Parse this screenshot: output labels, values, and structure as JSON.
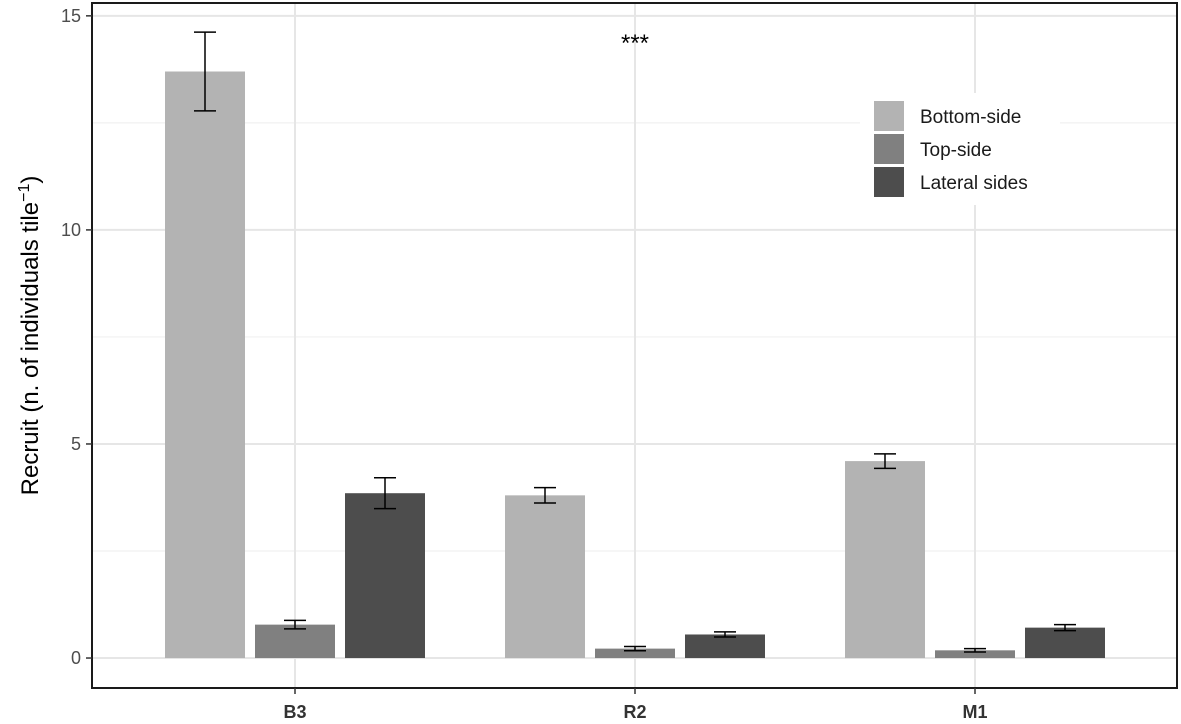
{
  "chart_data": {
    "type": "bar",
    "categories": [
      "B3",
      "R2",
      "M1"
    ],
    "series": [
      {
        "name": "Bottom-side",
        "color": "#b3b3b3",
        "values": [
          13.7,
          3.8,
          4.6
        ],
        "errors": [
          0.92,
          0.18,
          0.17
        ]
      },
      {
        "name": "Top-side",
        "color": "#808080",
        "values": [
          0.78,
          0.22,
          0.18
        ],
        "errors": [
          0.1,
          0.05,
          0.04
        ]
      },
      {
        "name": "Lateral sides",
        "color": "#4d4d4d",
        "values": [
          3.85,
          0.55,
          0.71
        ],
        "errors": [
          0.36,
          0.06,
          0.07
        ]
      }
    ],
    "ylabel_main": "Recruit (n. of individuals tile",
    "ylabel_sup": "−1",
    "ylabel_close": ")",
    "xlabel": "",
    "ylim": [
      -0.7,
      15.3
    ],
    "yticks": [
      0,
      5,
      10,
      15
    ],
    "annotation": "***",
    "grid": true,
    "legend_position": "top-right"
  }
}
